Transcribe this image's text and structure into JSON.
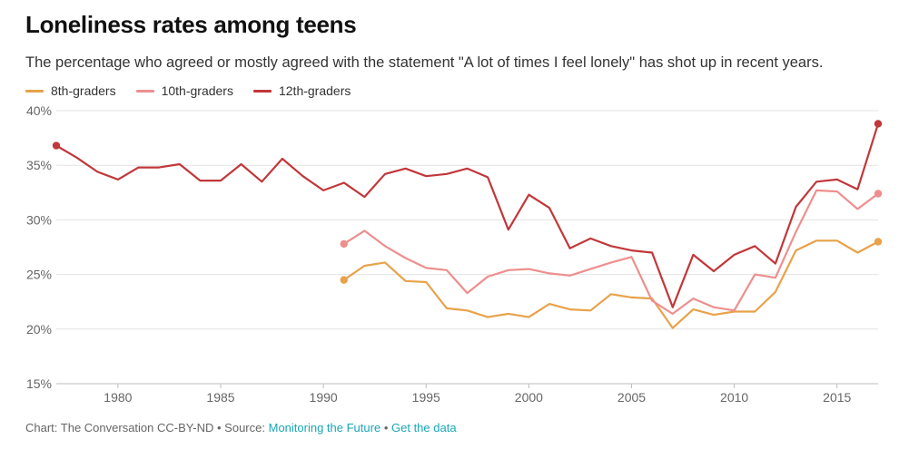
{
  "chart_data": {
    "type": "line",
    "title": "Loneliness rates among teens",
    "subtitle": "The percentage who agreed or mostly agreed with the statement \"A lot of times I feel lonely\" has shot up in recent years.",
    "xlabel": "",
    "ylabel": "",
    "xlim": [
      1977,
      2017
    ],
    "ylim": [
      15,
      40
    ],
    "x_ticks": [
      1980,
      1985,
      1990,
      1995,
      2000,
      2005,
      2010,
      2015
    ],
    "y_ticks": [
      15,
      20,
      25,
      30,
      35,
      40
    ],
    "y_tick_labels": [
      "15%",
      "20%",
      "25%",
      "30%",
      "35%",
      "40%"
    ],
    "grid": true,
    "legend_position": "top-left",
    "series": [
      {
        "name": "8th-graders",
        "color": "#e8a24a",
        "x": [
          1991,
          1992,
          1993,
          1994,
          1995,
          1996,
          1997,
          1998,
          1999,
          2000,
          2001,
          2002,
          2003,
          2004,
          2005,
          2006,
          2007,
          2008,
          2009,
          2010,
          2011,
          2012,
          2013,
          2014,
          2015,
          2016,
          2017
        ],
        "values": [
          24.5,
          25.8,
          26.1,
          24.4,
          24.3,
          21.9,
          21.7,
          21.1,
          21.4,
          21.1,
          22.3,
          21.8,
          21.7,
          23.2,
          22.9,
          22.8,
          20.1,
          21.8,
          21.3,
          21.6,
          21.6,
          23.4,
          27.2,
          28.1,
          28.1,
          27.0,
          28.0
        ]
      },
      {
        "name": "10th-graders",
        "color": "#ee8e8e",
        "x": [
          1991,
          1992,
          1993,
          1994,
          1995,
          1996,
          1997,
          1998,
          1999,
          2000,
          2001,
          2002,
          2003,
          2004,
          2005,
          2006,
          2007,
          2008,
          2009,
          2010,
          2011,
          2012,
          2013,
          2014,
          2015,
          2016,
          2017
        ],
        "values": [
          27.8,
          29.0,
          27.6,
          26.5,
          25.6,
          25.4,
          23.3,
          24.8,
          25.4,
          25.5,
          25.1,
          24.9,
          25.5,
          26.1,
          26.6,
          22.6,
          21.4,
          22.8,
          22.0,
          21.7,
          25.0,
          24.7,
          28.9,
          32.7,
          32.6,
          31.0,
          32.4
        ]
      },
      {
        "name": "12th-graders",
        "color": "#c1373a",
        "x": [
          1977,
          1978,
          1979,
          1980,
          1981,
          1982,
          1983,
          1984,
          1985,
          1986,
          1987,
          1988,
          1989,
          1990,
          1991,
          1992,
          1993,
          1994,
          1995,
          1996,
          1997,
          1998,
          1999,
          2000,
          2001,
          2002,
          2003,
          2004,
          2005,
          2006,
          2007,
          2008,
          2009,
          2010,
          2011,
          2012,
          2013,
          2014,
          2015,
          2016,
          2017
        ],
        "values": [
          36.8,
          35.7,
          34.4,
          33.7,
          34.8,
          34.8,
          35.1,
          33.6,
          33.6,
          35.1,
          33.5,
          35.6,
          34.0,
          32.7,
          33.4,
          32.1,
          34.2,
          34.7,
          34.0,
          34.2,
          34.7,
          33.9,
          29.1,
          32.3,
          31.1,
          27.4,
          28.3,
          27.6,
          27.2,
          27.0,
          22.0,
          26.8,
          25.3,
          26.8,
          27.6,
          26.0,
          31.2,
          33.5,
          33.7,
          32.8,
          38.8
        ]
      }
    ]
  },
  "footer": {
    "credit": "Chart: The Conversation CC-BY-ND",
    "separator": "•",
    "source_prefix": "Source:",
    "source_link": "Monitoring the Future",
    "data_link": "Get the data"
  }
}
